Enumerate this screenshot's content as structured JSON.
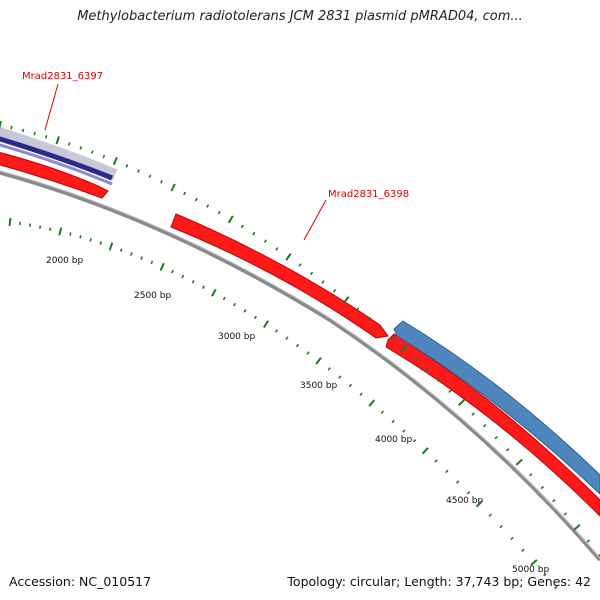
{
  "title": "Methylobacterium radiotolerans JCM 2831 plasmid pMRAD04, com...",
  "accession": "Accession: NC_010517",
  "summary": "Topology: circular; Length: 37,743 bp; Genes: 42",
  "colors": {
    "forward_gene": "#ff0000",
    "reverse_gene": "#4f86bd",
    "other_feature": "#22228a",
    "backbone": "#8a8a8a",
    "ticks": "#1f7a1f",
    "label": "#e00000"
  },
  "map": {
    "genome_length_bp": 37743,
    "tick_labels": [
      "2000 bp",
      "2500 bp",
      "3000 bp",
      "3500 bp",
      "4000 bp",
      "4500 bp",
      "5000 bp"
    ],
    "genes": [
      {
        "name": "Mrad2831_6397",
        "strand": "forward"
      },
      {
        "name": "Mrad2831_6398",
        "strand": "forward"
      },
      {
        "name": "",
        "strand": "reverse"
      }
    ]
  }
}
